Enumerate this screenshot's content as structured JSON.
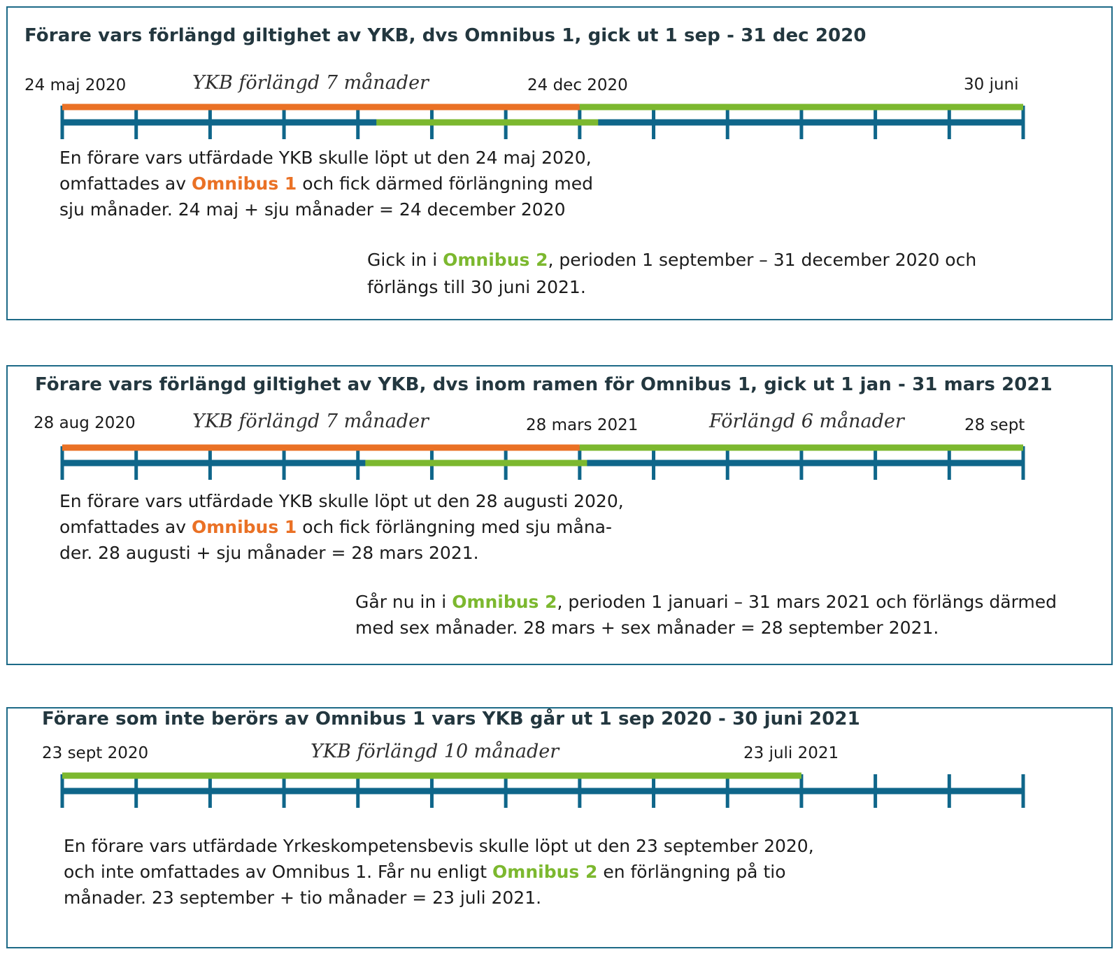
{
  "colors": {
    "border": "#1d6a87",
    "axis": "#0f668a",
    "omnibus1": "#ea7125",
    "omnibus2": "#7cb82f",
    "title": "#23373f"
  },
  "panels": [
    {
      "title": "Förare vars förlängd giltighet av YKB, dvs Omnibus 1, gick ut 1 sep - 31 dec 2020",
      "labels": {
        "start": "24 maj 2020",
        "extension1": "YKB förlängd 7 månader",
        "mid": "24 dec 2020",
        "end": "30 juni"
      },
      "timeline": {
        "ticks": 14,
        "bars": [
          {
            "name": "omnibus1-extension",
            "color": "omnibus1",
            "lane": "upper",
            "from_month": 0,
            "to_month": 7
          },
          {
            "name": "omnibus2-extension",
            "color": "omnibus2",
            "lane": "upper",
            "from_month": 7,
            "to_month": 13
          },
          {
            "name": "omnibus2-period",
            "color": "omnibus2",
            "lane": "axis",
            "from_month": 4.25,
            "to_month": 7.25
          }
        ]
      },
      "desc1": {
        "line1": "En förare vars utfärdade YKB skulle löpt ut den 24 maj 2020,",
        "line2_pre": "omfattades av ",
        "line2_highlight": "Omnibus 1",
        "line2_post": " och fick därmed förlängning med",
        "line3": "sju månader. 24 maj + sju månader = 24 december 2020"
      },
      "desc2": {
        "line1_pre": "Gick in i ",
        "line1_highlight": "Omnibus 2",
        "line1_post": ", perioden 1 september – 31 december 2020 och",
        "line2": "förlängs till 30 juni 2021."
      }
    },
    {
      "title": "Förare vars förlängd giltighet av YKB, dvs inom ramen för Omnibus 1, gick ut 1 jan - 31 mars 2021",
      "labels": {
        "start": "28 aug 2020",
        "extension1": "YKB förlängd 7 månader",
        "mid": "28 mars 2021",
        "extension2": "Förlängd 6 månader",
        "end": "28 sept"
      },
      "timeline": {
        "ticks": 14,
        "bars": [
          {
            "name": "omnibus1-extension",
            "color": "omnibus1",
            "lane": "upper",
            "from_month": 0,
            "to_month": 7
          },
          {
            "name": "omnibus2-extension",
            "color": "omnibus2",
            "lane": "upper",
            "from_month": 7,
            "to_month": 13
          },
          {
            "name": "omnibus2-period",
            "color": "omnibus2",
            "lane": "axis",
            "from_month": 4.1,
            "to_month": 7.1
          }
        ]
      },
      "desc1": {
        "line1": "En förare vars utfärdade YKB skulle löpt ut den 28 augusti 2020,",
        "line2_pre": "omfattades av ",
        "line2_highlight": "Omnibus 1",
        "line2_post": " och fick förlängning med sju måna-",
        "line3": "der. 28 augusti + sju månader = 28 mars 2021."
      },
      "desc2": {
        "line1_pre": "Går nu in i ",
        "line1_highlight": "Omnibus 2",
        "line1_post": ", perioden 1 januari – 31 mars 2021 och förlängs därmed",
        "line2": "med sex månader. 28 mars + sex månader = 28 september 2021."
      }
    },
    {
      "title": "Förare som inte berörs av Omnibus 1 vars YKB går ut 1 sep 2020 - 30 juni 2021",
      "labels": {
        "start": "23 sept 2020",
        "extension1": "YKB förlängd 10 månader",
        "mid": "23 juli 2021"
      },
      "timeline": {
        "ticks": 14,
        "bars": [
          {
            "name": "omnibus2-extension",
            "color": "omnibus2",
            "lane": "upper",
            "from_month": 0,
            "to_month": 10
          }
        ]
      },
      "desc1": {
        "line1": "En förare vars utfärdade Yrkeskompetensbevis skulle löpt ut den 23 september 2020,",
        "line2_pre": "och inte omfattades av Omnibus 1. Får nu enligt ",
        "line2_highlight": "Omnibus 2",
        "line2_post": " en förlängning på tio",
        "line3": "månader. 23 september + tio månader = 23 juli 2021."
      }
    }
  ]
}
